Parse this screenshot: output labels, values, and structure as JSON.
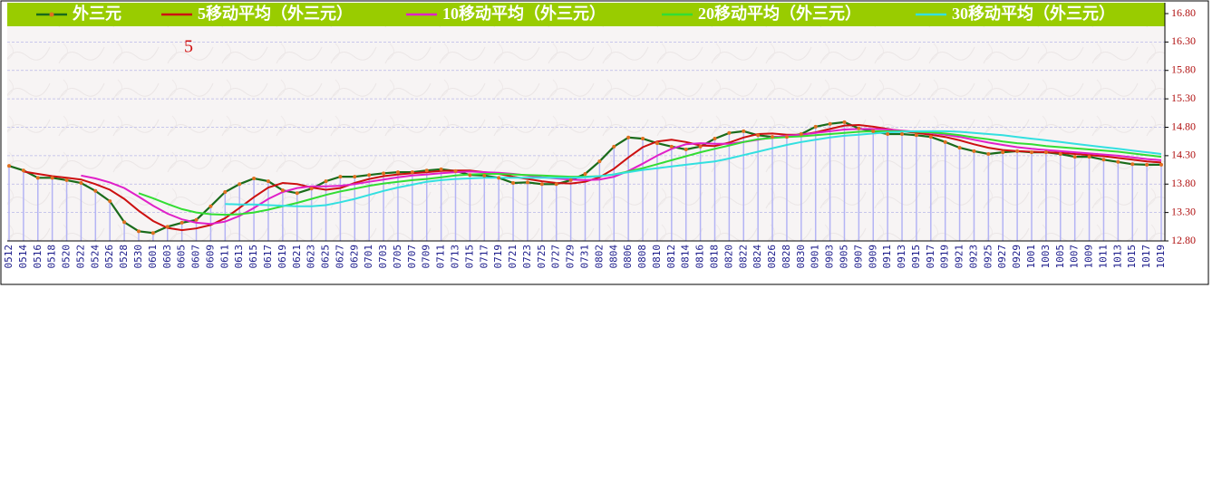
{
  "chart_data": {
    "type": "line",
    "annotation": "5",
    "categories": [
      "0512",
      "0514",
      "0516",
      "0518",
      "0520",
      "0522",
      "0524",
      "0526",
      "0528",
      "0530",
      "0601",
      "0603",
      "0605",
      "0607",
      "0609",
      "0611",
      "0613",
      "0615",
      "0617",
      "0619",
      "0621",
      "0623",
      "0625",
      "0627",
      "0629",
      "0701",
      "0703",
      "0705",
      "0707",
      "0709",
      "0711",
      "0713",
      "0715",
      "0717",
      "0719",
      "0721",
      "0723",
      "0725",
      "0727",
      "0729",
      "0731",
      "0802",
      "0804",
      "0806",
      "0808",
      "0810",
      "0812",
      "0814",
      "0816",
      "0818",
      "0820",
      "0822",
      "0824",
      "0826",
      "0828",
      "0830",
      "0901",
      "0903",
      "0905",
      "0907",
      "0909",
      "0911",
      "0913",
      "0915",
      "0917",
      "0919",
      "0921",
      "0923",
      "0925",
      "0927",
      "0929",
      "1001",
      "1003",
      "1005",
      "1007",
      "1009",
      "1011",
      "1013",
      "1015",
      "1017",
      "1019"
    ],
    "series": [
      {
        "name": "外三元",
        "color": "#1a6b1a",
        "marker_color": "#e07020",
        "drop_color": "#b4b4f4",
        "values": [
          14.12,
          14.04,
          13.91,
          13.91,
          13.87,
          13.82,
          13.68,
          13.5,
          13.13,
          12.97,
          12.94,
          13.05,
          13.12,
          13.17,
          13.41,
          13.66,
          13.8,
          13.9,
          13.85,
          13.69,
          13.64,
          13.72,
          13.85,
          13.93,
          13.93,
          13.96,
          13.99,
          14.01,
          14.01,
          14.04,
          14.06,
          14.03,
          13.96,
          13.95,
          13.91,
          13.82,
          13.83,
          13.8,
          13.8,
          13.87,
          13.98,
          14.2,
          14.46,
          14.62,
          14.6,
          14.52,
          14.46,
          14.41,
          14.46,
          14.6,
          14.7,
          14.73,
          14.66,
          14.63,
          14.63,
          14.68,
          14.81,
          14.86,
          14.89,
          14.78,
          14.73,
          14.68,
          14.68,
          14.66,
          14.63,
          14.54,
          14.44,
          14.38,
          14.33,
          14.36,
          14.38,
          14.36,
          14.36,
          14.33,
          14.28,
          14.28,
          14.23,
          14.19,
          14.15,
          14.14,
          14.14
        ]
      },
      {
        "name": "5移动平均（外三元）",
        "color": "#cc1010",
        "values": [
          null,
          14.02,
          13.98,
          13.94,
          13.91,
          13.88,
          13.8,
          13.7,
          13.54,
          13.33,
          13.15,
          13.03,
          12.99,
          13.02,
          13.08,
          13.2,
          13.38,
          13.57,
          13.74,
          13.82,
          13.8,
          13.74,
          13.7,
          13.73,
          13.82,
          13.89,
          13.94,
          13.97,
          13.99,
          14.01,
          14.03,
          14.04,
          14.04,
          14.01,
          13.98,
          13.93,
          13.89,
          13.85,
          13.82,
          13.81,
          13.84,
          13.92,
          14.07,
          14.27,
          14.45,
          14.55,
          14.58,
          14.54,
          14.48,
          14.47,
          14.53,
          14.62,
          14.68,
          14.69,
          14.67,
          14.67,
          14.71,
          14.77,
          14.83,
          14.84,
          14.81,
          14.77,
          14.73,
          14.7,
          14.67,
          14.63,
          14.57,
          14.5,
          14.44,
          14.4,
          14.38,
          14.37,
          14.36,
          14.35,
          14.33,
          14.31,
          14.29,
          14.26,
          14.23,
          14.2,
          14.18
        ]
      },
      {
        "name": "10移动平均（外三元）",
        "color": "#e020c8",
        "values": [
          null,
          null,
          null,
          null,
          null,
          13.95,
          13.9,
          13.83,
          13.73,
          13.58,
          13.42,
          13.28,
          13.18,
          13.12,
          13.1,
          13.14,
          13.24,
          13.38,
          13.54,
          13.66,
          13.73,
          13.76,
          13.76,
          13.77,
          13.8,
          13.84,
          13.88,
          13.92,
          13.95,
          13.97,
          13.99,
          14.01,
          14.02,
          14.01,
          14.0,
          13.98,
          13.95,
          13.92,
          13.9,
          13.88,
          13.87,
          13.88,
          13.93,
          14.03,
          14.16,
          14.3,
          14.42,
          14.5,
          14.52,
          14.51,
          14.51,
          14.54,
          14.58,
          14.62,
          14.65,
          14.67,
          14.7,
          14.73,
          14.76,
          14.77,
          14.77,
          14.76,
          14.74,
          14.72,
          14.7,
          14.67,
          14.63,
          14.58,
          14.53,
          14.49,
          14.45,
          14.42,
          14.4,
          14.38,
          14.36,
          14.34,
          14.32,
          14.3,
          14.27,
          14.24,
          14.22
        ]
      },
      {
        "name": "20移动平均（外三元）",
        "color": "#33dd33",
        "values": [
          null,
          null,
          null,
          null,
          null,
          null,
          null,
          null,
          null,
          13.64,
          13.55,
          13.45,
          13.36,
          13.3,
          13.27,
          13.26,
          13.27,
          13.3,
          13.35,
          13.41,
          13.47,
          13.54,
          13.61,
          13.67,
          13.72,
          13.77,
          13.81,
          13.84,
          13.87,
          13.89,
          13.92,
          13.95,
          13.97,
          13.98,
          13.98,
          13.97,
          13.96,
          13.95,
          13.94,
          13.93,
          13.93,
          13.94,
          13.97,
          14.02,
          14.08,
          14.15,
          14.22,
          14.29,
          14.36,
          14.42,
          14.48,
          14.54,
          14.59,
          14.61,
          14.63,
          14.64,
          14.66,
          14.68,
          14.7,
          14.72,
          14.73,
          14.73,
          14.73,
          14.72,
          14.71,
          14.69,
          14.66,
          14.62,
          14.59,
          14.55,
          14.52,
          14.5,
          14.47,
          14.45,
          14.43,
          14.41,
          14.39,
          14.37,
          14.34,
          14.31,
          14.28
        ]
      },
      {
        "name": "30移动平均（外三元）",
        "color": "#33e0e0",
        "values": [
          null,
          null,
          null,
          null,
          null,
          null,
          null,
          null,
          null,
          null,
          null,
          null,
          null,
          null,
          null,
          13.45,
          13.44,
          13.44,
          13.43,
          13.42,
          13.41,
          13.41,
          13.43,
          13.48,
          13.54,
          13.61,
          13.68,
          13.74,
          13.79,
          13.84,
          13.87,
          13.89,
          13.9,
          13.91,
          13.91,
          13.91,
          13.91,
          13.91,
          13.91,
          13.91,
          13.92,
          13.94,
          13.97,
          14.01,
          14.05,
          14.08,
          14.11,
          14.14,
          14.17,
          14.2,
          14.25,
          14.31,
          14.37,
          14.43,
          14.49,
          14.54,
          14.58,
          14.62,
          14.65,
          14.67,
          14.69,
          14.71,
          14.72,
          14.73,
          14.73,
          14.73,
          14.72,
          14.7,
          14.68,
          14.66,
          14.63,
          14.6,
          14.57,
          14.54,
          14.51,
          14.48,
          14.45,
          14.42,
          14.39,
          14.36,
          14.33
        ]
      }
    ],
    "ylim": [
      12.8,
      16.8
    ],
    "yticks": [
      {
        "value": 12.8,
        "label": "12.80"
      },
      {
        "value": 13.3,
        "label": "13.30"
      },
      {
        "value": 13.8,
        "label": "13.80"
      },
      {
        "value": 14.3,
        "label": "14.30"
      },
      {
        "value": 14.8,
        "label": "14.80"
      },
      {
        "value": 15.3,
        "label": "15.30"
      },
      {
        "value": 15.8,
        "label": "15.80"
      },
      {
        "value": 16.3,
        "label": "16.30"
      },
      {
        "value": 16.8,
        "label": "16.80"
      }
    ],
    "grid": true,
    "legend_position": "top",
    "legend_color": "#99cc00",
    "axis_position": "right"
  }
}
